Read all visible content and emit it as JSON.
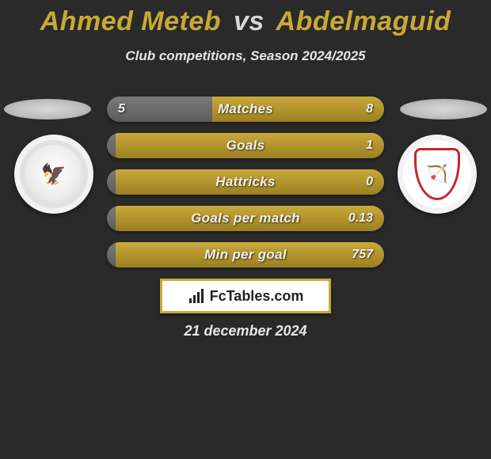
{
  "title": {
    "left": "Ahmed Meteb",
    "vs": "vs",
    "right": "Abdelmaguid"
  },
  "subtitle": "Club competitions, Season 2024/2025",
  "colors": {
    "left_seg": "#6a6a6a",
    "right_seg": "#a88a24",
    "left_seg_highlight": "#7d7d7d",
    "right_seg_highlight": "#c8a936",
    "bar_bg_left": "linear-gradient(180deg,#7a7a7a 0%, #5c5c5c 100%)",
    "bar_bg_right": "linear-gradient(180deg,#caa93a 0%, #9b7f22 100%)",
    "accent": "#c8a936",
    "text": "#f0f0f0",
    "page_bg": "#2a2a2a"
  },
  "bars": [
    {
      "label": "Matches",
      "left": "5",
      "right": "8",
      "left_pct": 38
    },
    {
      "label": "Goals",
      "left": "",
      "right": "1",
      "left_pct": 3
    },
    {
      "label": "Hattricks",
      "left": "",
      "right": "0",
      "left_pct": 3
    },
    {
      "label": "Goals per match",
      "left": "",
      "right": "0.13",
      "left_pct": 3
    },
    {
      "label": "Min per goal",
      "left": "",
      "right": "757",
      "left_pct": 3
    }
  ],
  "brand": {
    "text": "FcTables.com"
  },
  "date": "21 december 2024",
  "crest_left_glyph": "🦅",
  "crest_right_glyph": "🏹"
}
